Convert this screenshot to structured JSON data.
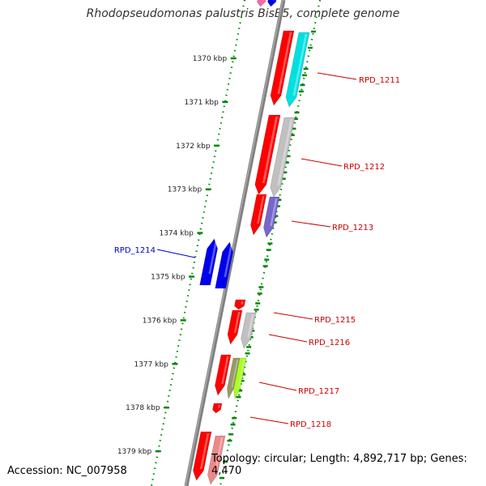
{
  "title": "Rhodopseudomonas palustris BisB5, complete genome",
  "footer": {
    "accession": "Accession: NC_007958",
    "topology": "Topology: circular; Length: 4,892,717 bp; Genes: 4,470"
  },
  "ticks": [
    {
      "kbp": 1370,
      "label": "1370 kbp"
    },
    {
      "kbp": 1371,
      "label": "1371 kbp"
    },
    {
      "kbp": 1372,
      "label": "1372 kbp"
    },
    {
      "kbp": 1373,
      "label": "1373 kbp"
    },
    {
      "kbp": 1374,
      "label": "1374 kbp"
    },
    {
      "kbp": 1375,
      "label": "1375 kbp"
    },
    {
      "kbp": 1376,
      "label": "1376 kbp"
    },
    {
      "kbp": 1377,
      "label": "1377 kbp"
    },
    {
      "kbp": 1378,
      "label": "1378 kbp"
    },
    {
      "kbp": 1379,
      "label": "1379 kbp"
    }
  ],
  "genes": [
    {
      "name": "RPD_1211",
      "strand": "forward",
      "cog_color": "#00e0e0"
    },
    {
      "name": "RPD_1212",
      "strand": "forward",
      "cog_color": "#c0c0c0"
    },
    {
      "name": "RPD_1213",
      "strand": "forward",
      "cog_color": "#7766cc"
    },
    {
      "name": "RPD_1214",
      "strand": "reverse",
      "cog_color": "#0000ee"
    },
    {
      "name": "RPD_1215",
      "strand": "forward",
      "cog_color": "#ff0000"
    },
    {
      "name": "RPD_1216",
      "strand": "forward",
      "cog_color": "#c0c0c0"
    },
    {
      "name": "RPD_1217",
      "strand": "forward",
      "cog_color": "#aaff22"
    },
    {
      "name": "RPD_1218",
      "strand": "forward",
      "cog_color": "#ff0000"
    }
  ],
  "colors": {
    "forward_label": "#cc0000",
    "reverse_label": "#0000cc",
    "gene_red": "#ff0000",
    "tick_green": "#008800",
    "backbone": "#888888"
  }
}
